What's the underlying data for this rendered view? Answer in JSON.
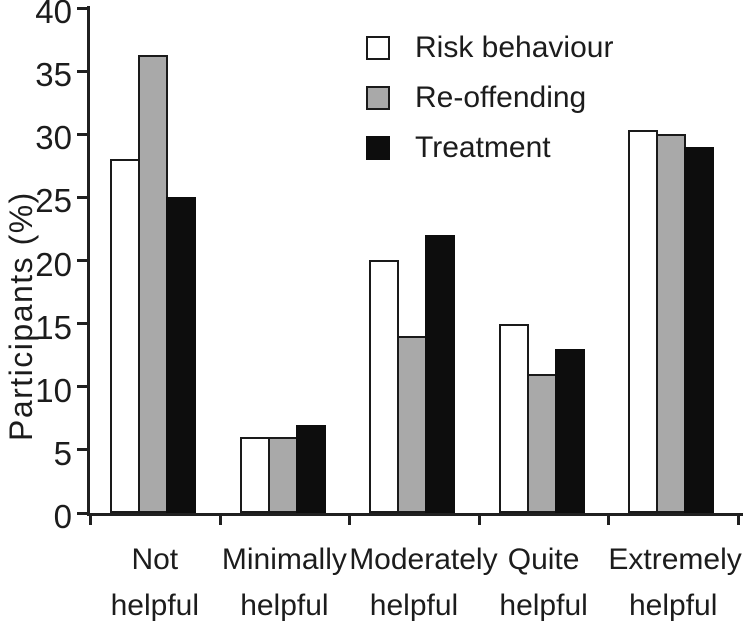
{
  "chart_data": {
    "type": "bar",
    "title": "",
    "ylabel": "Participants (%)",
    "xlabel": "",
    "ylim": [
      0,
      40
    ],
    "ytick_step": 5,
    "yticks": [
      0,
      5,
      10,
      15,
      20,
      25,
      30,
      35,
      40
    ],
    "grid": false,
    "legend_position": "top-center-inside",
    "categories": [
      "Not helpful",
      "Minimally helpful",
      "Moderately helpful",
      "Quite helpful",
      "Extremely helpful"
    ],
    "category_label_lines": [
      [
        "Not",
        "helpful"
      ],
      [
        "Minimally",
        "helpful"
      ],
      [
        "Moderately",
        "helpful"
      ],
      [
        "Quite",
        "helpful"
      ],
      [
        "Extremely",
        "helpful"
      ]
    ],
    "series": [
      {
        "name": "Risk behaviour",
        "color": "#ffffff",
        "border": "#1a1a1a",
        "values": [
          28,
          6,
          20,
          15,
          30.3
        ]
      },
      {
        "name": "Re-offending",
        "color": "#a9a9a9",
        "border": "#1a1a1a",
        "values": [
          36.3,
          6,
          14,
          11,
          30
        ]
      },
      {
        "name": "Treatment",
        "color": "#0d0d0d",
        "border": "#0d0d0d",
        "values": [
          25,
          7,
          22,
          13,
          29
        ]
      }
    ],
    "colors": {
      "background": "#ffffff",
      "axis": "#202020",
      "text": "#1c1c1c"
    }
  }
}
